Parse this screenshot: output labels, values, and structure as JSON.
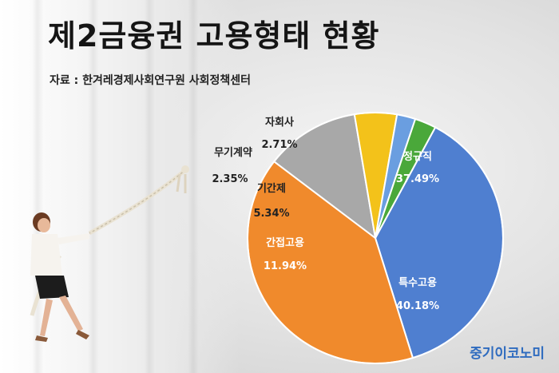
{
  "title": "제2금융권 고용형태 현황",
  "source": "자료 : 한겨레경제사회연구원 사회정책센터",
  "brand": "중기이코노미",
  "chart_data": {
    "type": "pie",
    "slices": [
      {
        "label": "정규직",
        "value": 37.49,
        "display": "37.49%",
        "color": "#4f7fd0"
      },
      {
        "label": "특수고용",
        "value": 40.18,
        "display": "40.18%",
        "color": "#f08a2c"
      },
      {
        "label": "간접고용",
        "value": 11.94,
        "display": "11.94%",
        "color": "#a8a8a8"
      },
      {
        "label": "기간제",
        "value": 5.34,
        "display": "5.34%",
        "color": "#f3c21a"
      },
      {
        "label": "무기계약",
        "value": 2.35,
        "display": "2.35%",
        "color": "#6a9ee0"
      },
      {
        "label": "자회사",
        "value": 2.71,
        "display": "2.71%",
        "color": "#4aa83a"
      }
    ]
  }
}
